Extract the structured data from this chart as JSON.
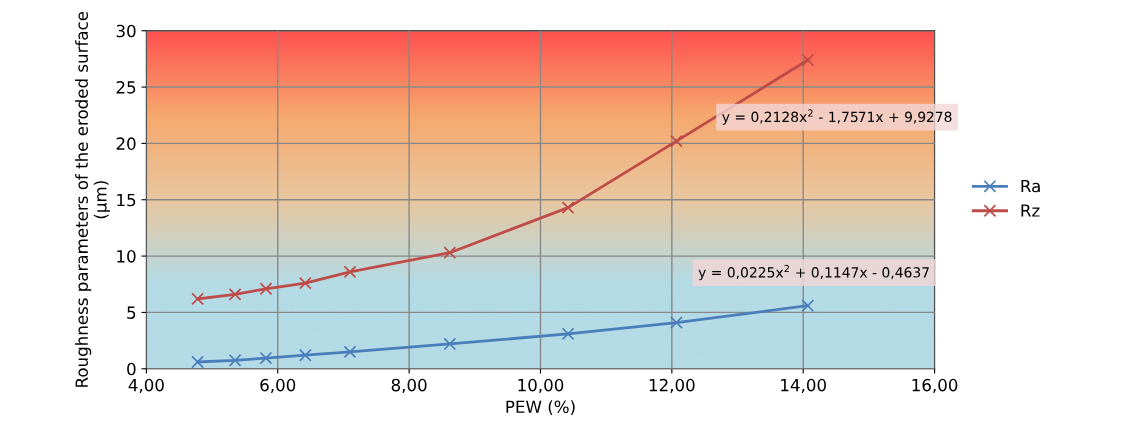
{
  "chart_data": {
    "type": "line",
    "xlabel": "PEW (%)",
    "ylabel": "Roughness parameters of the eroded surface (µm)",
    "xlim": [
      4,
      16
    ],
    "xticks": [
      {
        "value": 4,
        "label": "4,00"
      },
      {
        "value": 6,
        "label": "6,00"
      },
      {
        "value": 8,
        "label": "8,00"
      },
      {
        "value": 10,
        "label": "10,00"
      },
      {
        "value": 12,
        "label": "12,00"
      },
      {
        "value": 14,
        "label": "14,00"
      },
      {
        "value": 16,
        "label": "16,00"
      }
    ],
    "ylim": [
      0,
      30
    ],
    "yticks": [
      0,
      5,
      10,
      15,
      20,
      25,
      30
    ],
    "grid": true,
    "legend": "right",
    "marker": "cross",
    "line_style": "solid",
    "x": [
      4.78,
      5.35,
      5.82,
      6.42,
      7.1,
      8.62,
      10.42,
      12.07,
      14.07
    ],
    "series": [
      {
        "name": "Ra",
        "color": "#4a7ebb",
        "values": [
          0.6,
          0.75,
          0.95,
          1.2,
          1.5,
          2.2,
          3.1,
          4.1,
          5.6
        ]
      },
      {
        "name": "Rz",
        "color": "#be4b48",
        "values": [
          6.2,
          6.6,
          7.1,
          7.6,
          8.6,
          10.3,
          14.3,
          20.2,
          27.4
        ]
      }
    ],
    "annotations": [
      "y = 0,2128x$^{2}$ - 1,7571x + 9,9278",
      "y = 0,0225x$^{2}$ + 0,1147x - 0,4637"
    ]
  }
}
